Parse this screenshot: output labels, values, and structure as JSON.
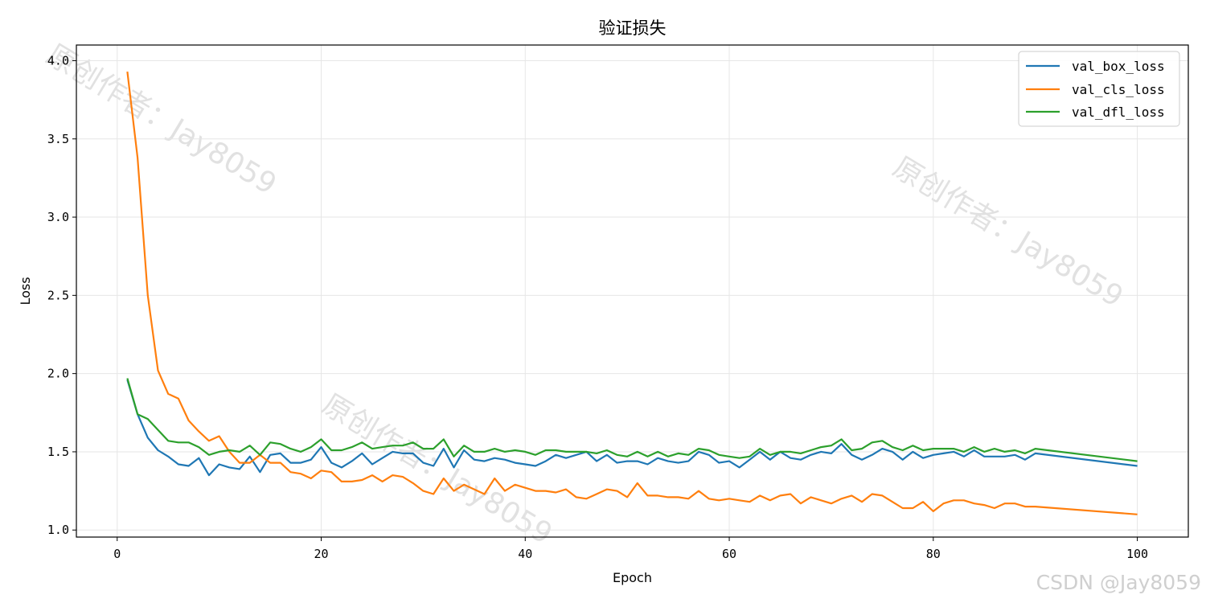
{
  "chart_data": {
    "type": "line",
    "title": "验证损失",
    "xlabel": "Epoch",
    "ylabel": "Loss",
    "xlim": [
      -4,
      105
    ],
    "ylim": [
      0.955,
      4.1
    ],
    "xticks": [
      0,
      20,
      40,
      60,
      80,
      100
    ],
    "yticks": [
      1.0,
      1.5,
      2.0,
      2.5,
      3.0,
      3.5,
      4.0
    ],
    "grid": true,
    "legend_position": "top-right",
    "x": [
      1,
      2,
      3,
      4,
      5,
      6,
      7,
      8,
      9,
      10,
      11,
      12,
      13,
      14,
      15,
      16,
      17,
      18,
      19,
      20,
      21,
      22,
      23,
      24,
      25,
      26,
      27,
      28,
      29,
      30,
      31,
      32,
      33,
      34,
      35,
      36,
      37,
      38,
      39,
      40,
      41,
      42,
      43,
      44,
      45,
      46,
      47,
      48,
      49,
      50,
      51,
      52,
      53,
      54,
      55,
      56,
      57,
      58,
      59,
      60,
      61,
      62,
      63,
      64,
      65,
      66,
      67,
      68,
      69,
      70,
      71,
      72,
      73,
      74,
      75,
      76,
      77,
      78,
      79,
      80,
      81,
      82,
      83,
      84,
      85,
      86,
      87,
      88,
      89,
      90,
      100
    ],
    "series": [
      {
        "name": "val_box_loss",
        "color": "#1f77b4",
        "values": [
          1.96,
          1.74,
          1.59,
          1.51,
          1.47,
          1.42,
          1.41,
          1.46,
          1.35,
          1.42,
          1.4,
          1.39,
          1.47,
          1.37,
          1.48,
          1.49,
          1.43,
          1.43,
          1.45,
          1.53,
          1.43,
          1.4,
          1.44,
          1.49,
          1.42,
          1.46,
          1.5,
          1.49,
          1.49,
          1.43,
          1.41,
          1.52,
          1.4,
          1.51,
          1.45,
          1.44,
          1.46,
          1.45,
          1.43,
          1.42,
          1.41,
          1.44,
          1.48,
          1.46,
          1.48,
          1.5,
          1.44,
          1.48,
          1.43,
          1.44,
          1.44,
          1.42,
          1.46,
          1.44,
          1.43,
          1.44,
          1.5,
          1.48,
          1.43,
          1.44,
          1.4,
          1.45,
          1.5,
          1.45,
          1.5,
          1.46,
          1.45,
          1.48,
          1.5,
          1.49,
          1.55,
          1.48,
          1.45,
          1.48,
          1.52,
          1.5,
          1.45,
          1.5,
          1.46,
          1.48,
          1.49,
          1.5,
          1.47,
          1.51,
          1.47,
          1.47,
          1.47,
          1.48,
          1.45,
          1.49,
          1.41
        ]
      },
      {
        "name": "val_cls_loss",
        "color": "#ff7f0e",
        "values": [
          3.93,
          3.38,
          2.5,
          2.02,
          1.87,
          1.84,
          1.7,
          1.63,
          1.57,
          1.6,
          1.5,
          1.43,
          1.43,
          1.48,
          1.43,
          1.43,
          1.37,
          1.36,
          1.33,
          1.38,
          1.37,
          1.31,
          1.31,
          1.32,
          1.35,
          1.31,
          1.35,
          1.34,
          1.3,
          1.25,
          1.23,
          1.33,
          1.25,
          1.29,
          1.26,
          1.23,
          1.33,
          1.25,
          1.29,
          1.27,
          1.25,
          1.25,
          1.24,
          1.26,
          1.21,
          1.2,
          1.23,
          1.26,
          1.25,
          1.21,
          1.3,
          1.22,
          1.22,
          1.21,
          1.21,
          1.2,
          1.25,
          1.2,
          1.19,
          1.2,
          1.19,
          1.18,
          1.22,
          1.19,
          1.22,
          1.23,
          1.17,
          1.21,
          1.19,
          1.17,
          1.2,
          1.22,
          1.18,
          1.23,
          1.22,
          1.18,
          1.14,
          1.14,
          1.18,
          1.12,
          1.17,
          1.19,
          1.19,
          1.17,
          1.16,
          1.14,
          1.17,
          1.17,
          1.15,
          1.15,
          1.1
        ]
      },
      {
        "name": "val_dfl_loss",
        "color": "#2ca02c",
        "values": [
          1.97,
          1.74,
          1.71,
          1.64,
          1.57,
          1.56,
          1.56,
          1.53,
          1.48,
          1.5,
          1.51,
          1.5,
          1.54,
          1.48,
          1.56,
          1.55,
          1.52,
          1.5,
          1.53,
          1.58,
          1.51,
          1.51,
          1.53,
          1.56,
          1.52,
          1.53,
          1.54,
          1.54,
          1.56,
          1.52,
          1.52,
          1.58,
          1.47,
          1.54,
          1.5,
          1.5,
          1.52,
          1.5,
          1.51,
          1.5,
          1.48,
          1.51,
          1.51,
          1.5,
          1.5,
          1.5,
          1.49,
          1.51,
          1.48,
          1.47,
          1.5,
          1.47,
          1.5,
          1.47,
          1.49,
          1.48,
          1.52,
          1.51,
          1.48,
          1.47,
          1.46,
          1.47,
          1.52,
          1.48,
          1.5,
          1.5,
          1.49,
          1.51,
          1.53,
          1.54,
          1.58,
          1.51,
          1.52,
          1.56,
          1.57,
          1.53,
          1.51,
          1.54,
          1.51,
          1.52,
          1.52,
          1.52,
          1.5,
          1.53,
          1.5,
          1.52,
          1.5,
          1.51,
          1.49,
          1.52,
          1.44
        ]
      }
    ]
  },
  "watermark": {
    "text": "原创作者：Jay8059",
    "credit": "CSDN @Jay8059"
  }
}
